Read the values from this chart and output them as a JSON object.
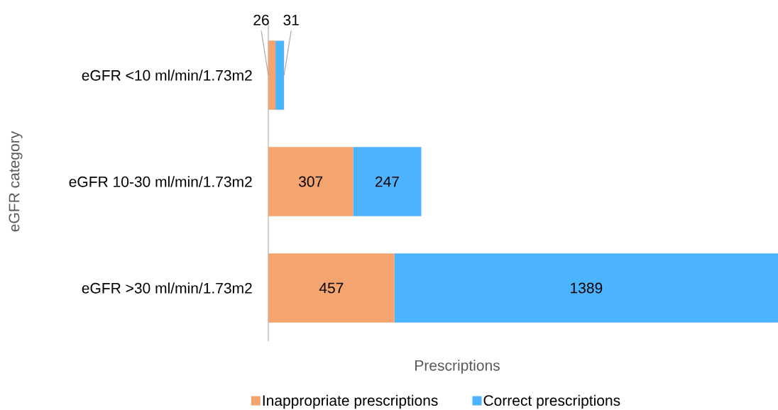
{
  "chart_data": {
    "type": "bar",
    "orientation": "horizontal",
    "stacked": true,
    "categories": [
      "eGFR <10 ml/min/1.73m2",
      "eGFR 10-30 ml/min/1.73m2",
      "eGFR >30 ml/min/1.73m2"
    ],
    "series": [
      {
        "name": "Inappropriate prescriptions",
        "color": "#f3a46f",
        "values": [
          26,
          307,
          457
        ]
      },
      {
        "name": "Correct prescriptions",
        "color": "#4cb4ff",
        "values": [
          31,
          247,
          1389
        ]
      }
    ],
    "xlabel": "Prescriptions",
    "ylabel": "eGFR category",
    "data_labels": true,
    "legend": "bottom"
  }
}
